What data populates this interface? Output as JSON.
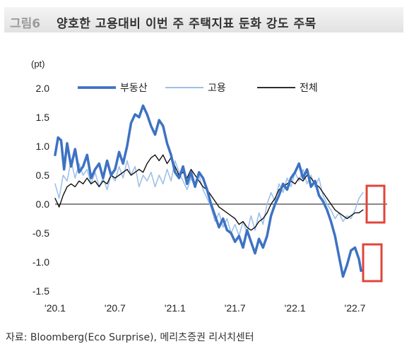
{
  "figure": {
    "label": "그림6",
    "title": "양호한 고용대비 이번 주 주택지표 둔화 강도 주목",
    "source": "자료: Bloomberg(Eco Surprise), 메리츠증권 리서치센터"
  },
  "colors": {
    "realestate": "#3d72c4",
    "employment": "#9ec1e8",
    "total": "#111111",
    "highlight": "#e0453a"
  },
  "chart_data": {
    "type": "line",
    "unit_label": "(pt)",
    "ylim": [
      -1.5,
      2.0
    ],
    "y_ticks": [
      "2.0",
      "1.5",
      "1.0",
      "0.5",
      "0.0",
      "-0.5",
      "-1.0",
      "-1.5"
    ],
    "y_tick_values": [
      2.0,
      1.5,
      1.0,
      0.5,
      0.0,
      -0.5,
      -1.0,
      -1.5
    ],
    "x_ticks": [
      "'20.1",
      "'20.7",
      "'21.1",
      "'21.7",
      "'22.1",
      "'22.7"
    ],
    "x_tick_values": [
      0,
      6,
      12,
      18,
      24,
      30
    ],
    "xlim": [
      0,
      33.5
    ],
    "legend_position": "top",
    "series": [
      {
        "name": "부동산",
        "key": "realestate",
        "points": [
          [
            0,
            0.85
          ],
          [
            0.3,
            1.15
          ],
          [
            0.6,
            1.1
          ],
          [
            0.9,
            0.6
          ],
          [
            1.2,
            1.05
          ],
          [
            1.6,
            0.65
          ],
          [
            2.0,
            0.95
          ],
          [
            2.4,
            0.55
          ],
          [
            2.8,
            0.65
          ],
          [
            3.2,
            0.85
          ],
          [
            3.6,
            0.45
          ],
          [
            4.0,
            0.6
          ],
          [
            4.4,
            0.7
          ],
          [
            4.8,
            0.45
          ],
          [
            5.2,
            0.75
          ],
          [
            5.6,
            0.5
          ],
          [
            6.0,
            0.6
          ],
          [
            6.4,
            0.9
          ],
          [
            6.8,
            0.7
          ],
          [
            7.2,
            1.0
          ],
          [
            7.6,
            1.4
          ],
          [
            8.0,
            1.55
          ],
          [
            8.4,
            1.5
          ],
          [
            8.8,
            1.7
          ],
          [
            9.2,
            1.55
          ],
          [
            9.6,
            1.35
          ],
          [
            10.0,
            1.2
          ],
          [
            10.4,
            1.45
          ],
          [
            10.8,
            1.35
          ],
          [
            11.2,
            1.05
          ],
          [
            11.6,
            0.85
          ],
          [
            12.0,
            0.55
          ],
          [
            12.4,
            0.45
          ],
          [
            12.8,
            0.65
          ],
          [
            13.2,
            0.35
          ],
          [
            13.6,
            0.55
          ],
          [
            14.0,
            0.3
          ],
          [
            14.4,
            0.55
          ],
          [
            14.8,
            0.45
          ],
          [
            15.2,
            0.25
          ],
          [
            15.6,
            0.0
          ],
          [
            16.0,
            -0.2
          ],
          [
            16.4,
            -0.4
          ],
          [
            16.8,
            -0.25
          ],
          [
            17.2,
            -0.45
          ],
          [
            17.6,
            -0.5
          ],
          [
            18.0,
            -0.65
          ],
          [
            18.4,
            -0.55
          ],
          [
            18.8,
            -0.75
          ],
          [
            19.2,
            -0.45
          ],
          [
            19.6,
            -0.65
          ],
          [
            20.0,
            -0.85
          ],
          [
            20.4,
            -0.6
          ],
          [
            20.8,
            -0.75
          ],
          [
            21.2,
            -0.55
          ],
          [
            21.6,
            -0.2
          ],
          [
            22.0,
            0.0
          ],
          [
            22.4,
            0.15
          ],
          [
            22.8,
            0.35
          ],
          [
            23.2,
            0.25
          ],
          [
            23.6,
            0.45
          ],
          [
            24.0,
            0.55
          ],
          [
            24.4,
            0.7
          ],
          [
            24.8,
            0.45
          ],
          [
            25.2,
            0.6
          ],
          [
            25.6,
            0.3
          ],
          [
            26.0,
            0.4
          ],
          [
            26.4,
            0.15
          ],
          [
            26.8,
            0.05
          ],
          [
            27.2,
            -0.1
          ],
          [
            27.6,
            -0.3
          ],
          [
            28.0,
            -0.55
          ],
          [
            28.4,
            -0.9
          ],
          [
            28.8,
            -1.25
          ],
          [
            29.2,
            -1.05
          ],
          [
            29.6,
            -0.8
          ],
          [
            30.0,
            -0.75
          ],
          [
            30.4,
            -0.95
          ],
          [
            30.6,
            -1.15
          ]
        ]
      },
      {
        "name": "고용",
        "key": "employment",
        "points": [
          [
            0,
            0.35
          ],
          [
            0.4,
            0.1
          ],
          [
            0.8,
            0.5
          ],
          [
            1.2,
            0.4
          ],
          [
            1.6,
            0.75
          ],
          [
            2.0,
            0.45
          ],
          [
            2.4,
            0.7
          ],
          [
            2.8,
            0.5
          ],
          [
            3.2,
            0.6
          ],
          [
            3.6,
            0.35
          ],
          [
            4.0,
            0.55
          ],
          [
            4.4,
            0.3
          ],
          [
            4.8,
            0.45
          ],
          [
            5.2,
            0.25
          ],
          [
            5.6,
            0.5
          ],
          [
            6.0,
            0.4
          ],
          [
            6.4,
            0.65
          ],
          [
            6.8,
            0.45
          ],
          [
            7.2,
            0.75
          ],
          [
            7.6,
            0.5
          ],
          [
            8.0,
            0.65
          ],
          [
            8.4,
            0.3
          ],
          [
            8.8,
            0.5
          ],
          [
            9.2,
            0.4
          ],
          [
            9.6,
            0.55
          ],
          [
            10.0,
            0.3
          ],
          [
            10.4,
            0.5
          ],
          [
            10.8,
            0.35
          ],
          [
            11.2,
            0.6
          ],
          [
            11.6,
            0.4
          ],
          [
            12.0,
            0.75
          ],
          [
            12.4,
            0.55
          ],
          [
            12.8,
            0.4
          ],
          [
            13.2,
            0.25
          ],
          [
            13.6,
            0.45
          ],
          [
            14.0,
            0.3
          ],
          [
            14.4,
            0.5
          ],
          [
            14.8,
            0.25
          ],
          [
            15.2,
            0.1
          ],
          [
            15.6,
            -0.05
          ],
          [
            16.0,
            -0.3
          ],
          [
            16.4,
            -0.15
          ],
          [
            16.8,
            -0.4
          ],
          [
            17.2,
            -0.25
          ],
          [
            17.6,
            -0.5
          ],
          [
            18.0,
            -0.35
          ],
          [
            18.4,
            -0.55
          ],
          [
            18.8,
            -0.3
          ],
          [
            19.2,
            -0.5
          ],
          [
            19.6,
            -0.2
          ],
          [
            20.0,
            -0.45
          ],
          [
            20.4,
            -0.15
          ],
          [
            20.8,
            -0.35
          ],
          [
            21.2,
            0.0
          ],
          [
            21.6,
            0.2
          ],
          [
            22.0,
            0.05
          ],
          [
            22.4,
            0.35
          ],
          [
            22.8,
            0.2
          ],
          [
            23.2,
            0.45
          ],
          [
            23.6,
            0.3
          ],
          [
            24.0,
            0.55
          ],
          [
            24.4,
            0.4
          ],
          [
            24.8,
            0.6
          ],
          [
            25.2,
            0.35
          ],
          [
            25.6,
            0.5
          ],
          [
            26.0,
            0.3
          ],
          [
            26.4,
            0.45
          ],
          [
            26.8,
            0.15
          ],
          [
            27.2,
            0.0
          ],
          [
            27.6,
            -0.1
          ],
          [
            28.0,
            -0.25
          ],
          [
            28.4,
            -0.15
          ],
          [
            28.8,
            -0.3
          ],
          [
            29.2,
            -0.2
          ],
          [
            29.6,
            -0.25
          ],
          [
            30.0,
            -0.1
          ],
          [
            30.4,
            0.1
          ],
          [
            30.8,
            0.2
          ]
        ]
      },
      {
        "name": "전체",
        "key": "total",
        "points": [
          [
            0,
            0.1
          ],
          [
            0.4,
            -0.05
          ],
          [
            0.8,
            0.15
          ],
          [
            1.2,
            0.3
          ],
          [
            1.6,
            0.35
          ],
          [
            2.0,
            0.3
          ],
          [
            2.4,
            0.4
          ],
          [
            2.8,
            0.35
          ],
          [
            3.2,
            0.45
          ],
          [
            3.6,
            0.35
          ],
          [
            4.0,
            0.4
          ],
          [
            4.4,
            0.3
          ],
          [
            4.8,
            0.4
          ],
          [
            5.2,
            0.35
          ],
          [
            5.6,
            0.5
          ],
          [
            6.0,
            0.45
          ],
          [
            6.4,
            0.5
          ],
          [
            6.8,
            0.55
          ],
          [
            7.2,
            0.6
          ],
          [
            7.6,
            0.5
          ],
          [
            8.0,
            0.55
          ],
          [
            8.4,
            0.6
          ],
          [
            8.8,
            0.55
          ],
          [
            9.2,
            0.7
          ],
          [
            9.6,
            0.8
          ],
          [
            10.0,
            0.85
          ],
          [
            10.4,
            0.75
          ],
          [
            10.8,
            0.85
          ],
          [
            11.2,
            0.7
          ],
          [
            11.6,
            0.8
          ],
          [
            12.0,
            0.65
          ],
          [
            12.4,
            0.5
          ],
          [
            12.8,
            0.55
          ],
          [
            13.2,
            0.45
          ],
          [
            13.6,
            0.6
          ],
          [
            14.0,
            0.5
          ],
          [
            14.4,
            0.4
          ],
          [
            14.8,
            0.3
          ],
          [
            15.2,
            0.25
          ],
          [
            15.6,
            0.15
          ],
          [
            16.0,
            0.05
          ],
          [
            16.4,
            -0.05
          ],
          [
            16.8,
            -0.1
          ],
          [
            17.2,
            -0.15
          ],
          [
            17.6,
            -0.2
          ],
          [
            18.0,
            -0.25
          ],
          [
            18.4,
            -0.35
          ],
          [
            18.8,
            -0.3
          ],
          [
            19.2,
            -0.4
          ],
          [
            19.6,
            -0.45
          ],
          [
            20.0,
            -0.4
          ],
          [
            20.4,
            -0.3
          ],
          [
            20.8,
            -0.25
          ],
          [
            21.2,
            -0.15
          ],
          [
            21.6,
            0.0
          ],
          [
            22.0,
            0.1
          ],
          [
            22.4,
            0.25
          ],
          [
            22.8,
            0.3
          ],
          [
            23.2,
            0.35
          ],
          [
            23.6,
            0.4
          ],
          [
            24.0,
            0.35
          ],
          [
            24.4,
            0.45
          ],
          [
            24.8,
            0.4
          ],
          [
            25.2,
            0.5
          ],
          [
            25.6,
            0.45
          ],
          [
            26.0,
            0.35
          ],
          [
            26.4,
            0.3
          ],
          [
            26.8,
            0.2
          ],
          [
            27.2,
            0.1
          ],
          [
            27.6,
            0.0
          ],
          [
            28.0,
            -0.1
          ],
          [
            28.4,
            -0.15
          ],
          [
            28.8,
            -0.2
          ],
          [
            29.2,
            -0.25
          ],
          [
            29.6,
            -0.2
          ],
          [
            30.0,
            -0.15
          ],
          [
            30.4,
            -0.15
          ],
          [
            30.8,
            -0.1
          ]
        ]
      }
    ]
  }
}
